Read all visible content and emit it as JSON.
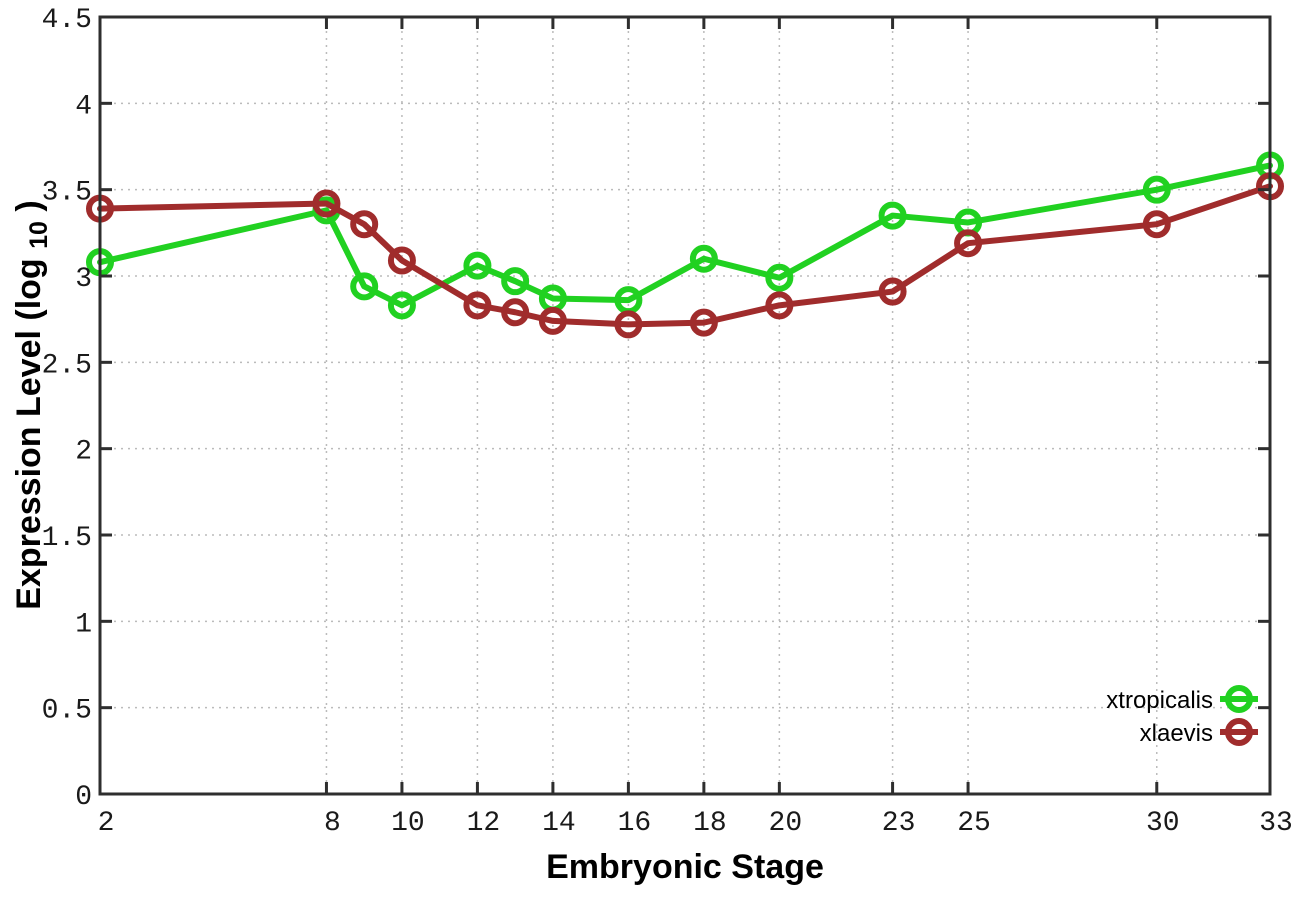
{
  "chart_data": {
    "type": "line",
    "xlabel": "Embryonic Stage",
    "ylabel": "Expression Level (log10)",
    "ylabel_parts": {
      "main": "Expression Level (log",
      "sub": "10",
      "close": ")"
    },
    "x": [
      2,
      8,
      9,
      10,
      12,
      13,
      14,
      16,
      18,
      20,
      23,
      25,
      30,
      33
    ],
    "x_ticks": [
      2,
      8,
      10,
      12,
      14,
      16,
      18,
      20,
      23,
      25,
      30,
      33
    ],
    "x_tick_labels": [
      "2",
      "8",
      "10",
      "12",
      "14",
      "16",
      "18",
      "20",
      "23",
      "25",
      "30",
      "33"
    ],
    "y_ticks": [
      0,
      0.5,
      1,
      1.5,
      2,
      2.5,
      3,
      3.5,
      4,
      4.5
    ],
    "y_tick_labels": [
      "0",
      "0.5",
      "1",
      "1.5",
      "2",
      "2.5",
      "3",
      "3.5",
      "4",
      "4.5"
    ],
    "xlim": [
      2,
      33
    ],
    "ylim": [
      0,
      4.5
    ],
    "grid": true,
    "legend_position": "bottom-right",
    "series": [
      {
        "name": "xtropicalis",
        "color": "#21d121",
        "marker": "open-circle",
        "values": [
          3.08,
          3.38,
          2.94,
          2.83,
          3.06,
          2.97,
          2.87,
          2.86,
          3.1,
          2.99,
          3.35,
          3.31,
          3.5,
          3.64
        ]
      },
      {
        "name": "xlaevis",
        "color": "#a02c2c",
        "marker": "open-circle",
        "values": [
          3.39,
          3.42,
          3.3,
          3.09,
          2.83,
          2.79,
          2.74,
          2.72,
          2.73,
          2.83,
          2.91,
          3.19,
          3.3,
          3.52
        ]
      }
    ],
    "colors": {
      "background": "#ffffff",
      "axis": "#2e2e2e",
      "grid": "#bbbbbb",
      "tick_label": "#1a1a1a",
      "text": "#000000"
    }
  }
}
